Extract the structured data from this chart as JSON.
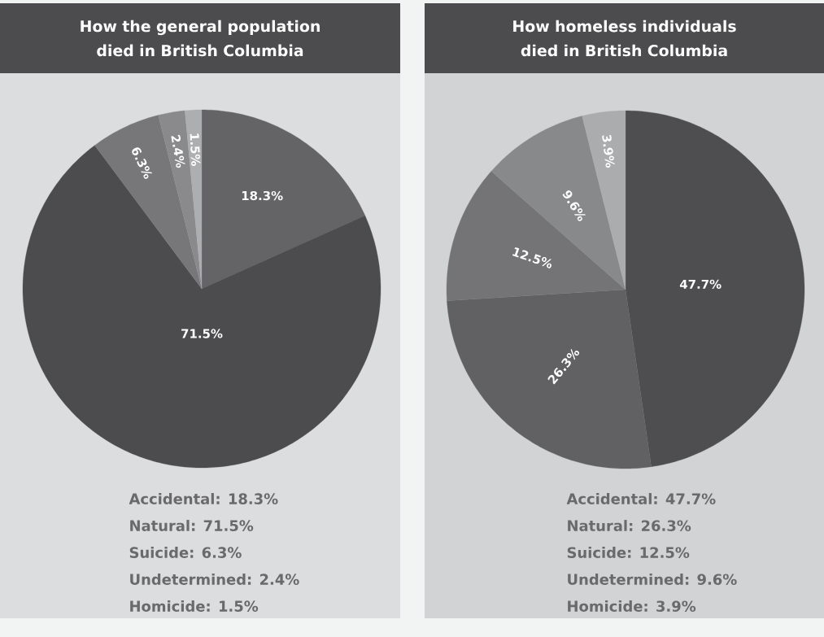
{
  "chart_data": [
    {
      "type": "pie",
      "title": "How the general population died in British Columbia",
      "categories": [
        null,
        null,
        null,
        null,
        null
      ],
      "values": [
        18.3,
        71.5,
        6.3,
        2.4,
        1.5
      ],
      "value_labels": [
        "18.3%",
        "71.5%",
        "6.3%",
        "2.4%",
        "1.5%"
      ],
      "colors": [
        "#646466",
        "#4c4c4e",
        "#77777a",
        "#8a8a8c",
        "#acaeb0"
      ],
      "annotations": [
        "Accidental: 18.3%",
        "Natural: 71.5%",
        "Suicide: 6.3%",
        "Undetermined: 2.4%",
        "Homicide: 1.5%"
      ]
    },
    {
      "type": "pie",
      "title": "How homeless individuals died in British Columbia",
      "categories": [
        null,
        null,
        null,
        null,
        null
      ],
      "values": [
        47.7,
        26.3,
        12.5,
        9.6,
        3.9
      ],
      "value_labels": [
        "47.7%",
        "26.3%",
        "12.5%",
        "9.6%",
        "3.9%"
      ],
      "colors": [
        "#4e4e50",
        "#616163",
        "#747477",
        "#88898b",
        "#aaacae"
      ],
      "annotations": [
        "Accidental: 47.7%",
        "Natural: 26.3%",
        "Suicide: 12.5%",
        "Undetermined: 9.6%",
        "Homicide: 3.9%"
      ]
    }
  ]
}
